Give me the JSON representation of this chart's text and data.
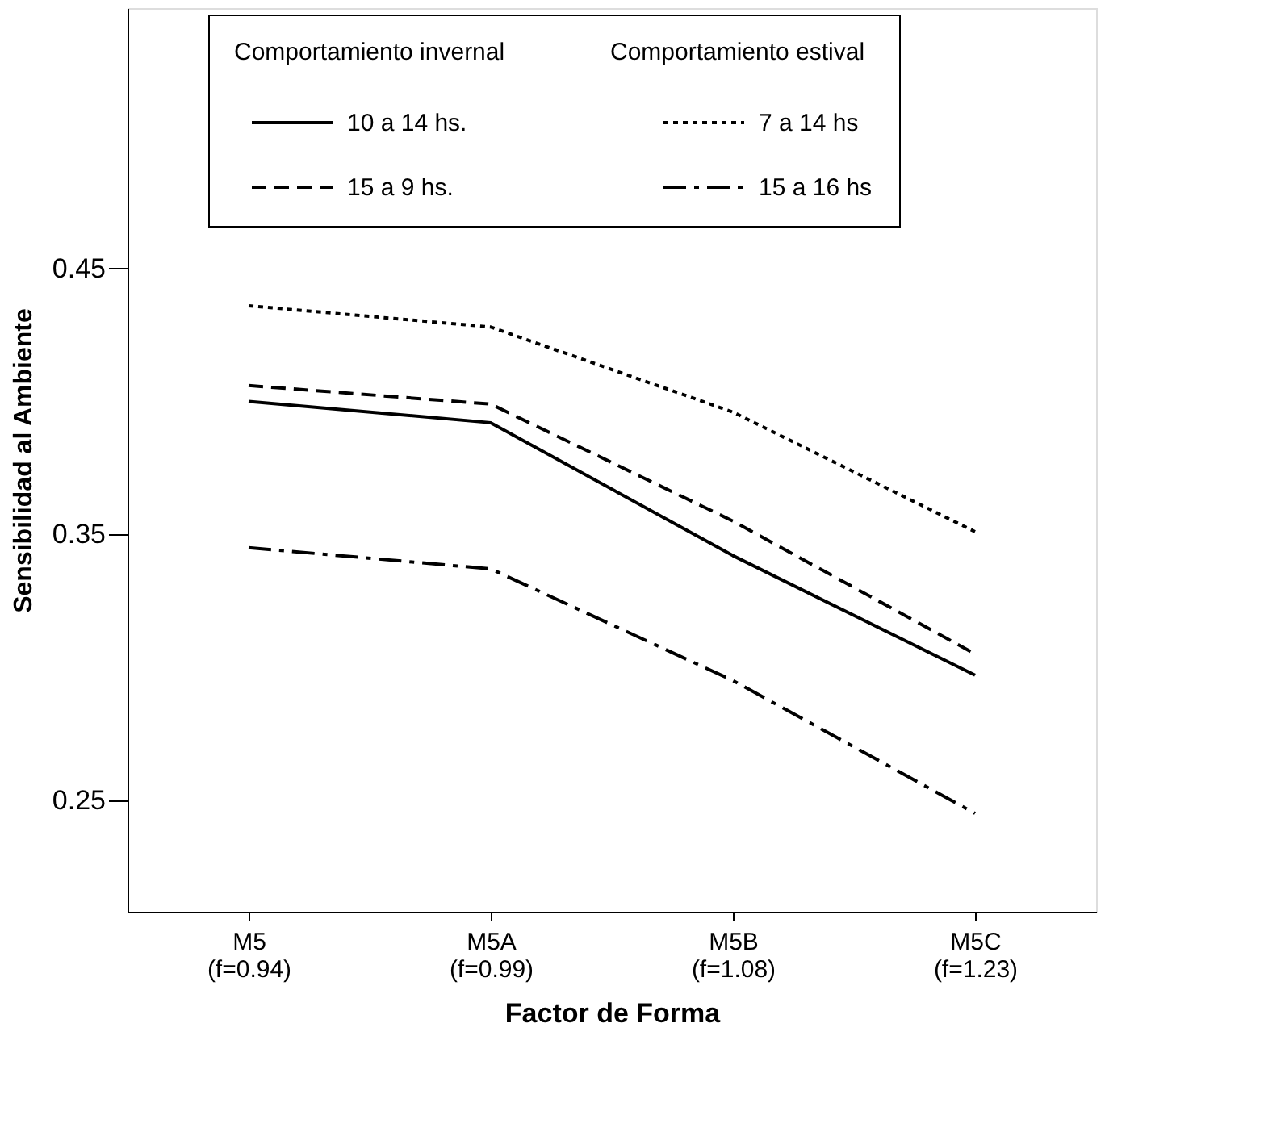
{
  "chart_data": {
    "type": "line",
    "xlabel": "Factor de Forma",
    "ylabel": "Sensibilidad al Ambiente",
    "categories": [
      "M5 (f=0.94)",
      "M5A (f=0.99)",
      "M5B (f=1.08)",
      "M5C (f=1.23)"
    ],
    "series": [
      {
        "name": "10 a 14 hs.",
        "color": "#000000",
        "line_style": "solid",
        "values": [
          0.4,
          0.392,
          0.342,
          0.297
        ]
      },
      {
        "name": "15 a 9 hs.",
        "color": "#000000",
        "line_style": "dashed",
        "values": [
          0.406,
          0.399,
          0.355,
          0.305
        ]
      },
      {
        "name": "7 a 14 hs",
        "color": "#000000",
        "line_style": "dotted",
        "values": [
          0.436,
          0.428,
          0.396,
          0.351
        ]
      },
      {
        "name": "15 a 16 hs",
        "color": "#000000",
        "line_style": "dashdot",
        "values": [
          0.345,
          0.337,
          0.295,
          0.245
        ]
      }
    ],
    "annotations": [
      "Comportamiento invernal",
      "Comportamiento estival"
    ],
    "ylim": [
      0.208,
      0.548
    ],
    "yticks": [
      0.25,
      0.35,
      0.45
    ],
    "grid": false,
    "legend": "top",
    "marker": "none"
  }
}
